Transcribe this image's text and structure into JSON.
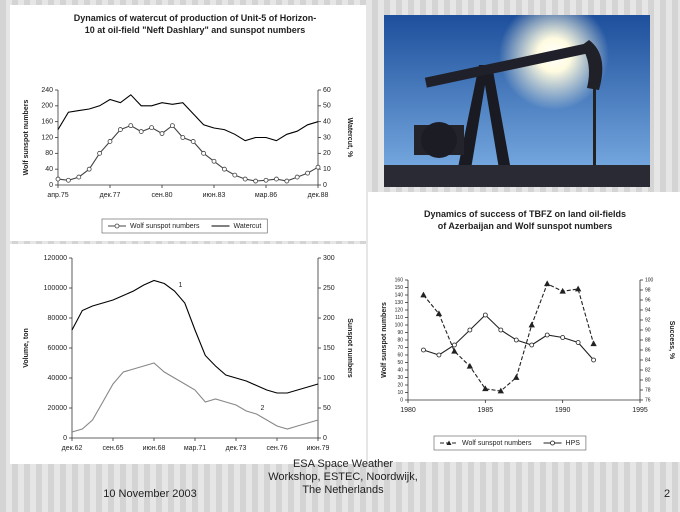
{
  "chart_data": [
    {
      "type": "line",
      "title": "Dynamics of watercut of production of Unit-5 of Horizon-10 at oil-field \"Neft Dashlary\" and sunspot numbers",
      "ylabel": "Wolf sunspot numbers",
      "y2label": "Watercut, %",
      "categories": [
        "апр.75",
        null,
        null,
        null,
        null,
        "дек.77",
        null,
        null,
        null,
        null,
        "сен.80",
        null,
        null,
        null,
        null,
        "июн.83",
        null,
        null,
        null,
        null,
        "мар.86",
        null,
        null,
        null,
        null,
        "дек.88"
      ],
      "series": [
        {
          "name": "Wolf sunspot numbers",
          "color": "#444444",
          "marker": "circle",
          "values": [
            15,
            12,
            20,
            40,
            80,
            110,
            140,
            150,
            135,
            145,
            130,
            150,
            120,
            110,
            80,
            60,
            40,
            25,
            15,
            10,
            12,
            15,
            10,
            20,
            30,
            45
          ]
        },
        {
          "name": "Watercut",
          "color": "#000000",
          "axis": "y2",
          "values": [
            35,
            46,
            47,
            48,
            50,
            54,
            52,
            57,
            50,
            50,
            52,
            51,
            52,
            45,
            38,
            36,
            35,
            32,
            28,
            30,
            30,
            28,
            32,
            34,
            38,
            40
          ]
        }
      ],
      "ylim": [
        0,
        240
      ],
      "yticks": [
        0,
        40,
        80,
        120,
        160,
        200,
        240
      ],
      "y2lim": [
        0,
        60
      ],
      "y2ticks": [
        0,
        10,
        20,
        30,
        40,
        50,
        60
      ],
      "legend": "bottom"
    },
    {
      "type": "line",
      "ylabel": "Volume, ton",
      "y2label": "Sunspot numbers",
      "categories": [
        "дек.62",
        null,
        null,
        null,
        "сен.65",
        null,
        null,
        null,
        "июн.68",
        null,
        null,
        null,
        "мар.71",
        null,
        null,
        null,
        "дек.73",
        null,
        null,
        null,
        "сен.76",
        null,
        null,
        null,
        "июн.79"
      ],
      "series": [
        {
          "name": "1",
          "color": "#000000",
          "values": [
            72000,
            85000,
            88000,
            90000,
            92000,
            95000,
            98000,
            102000,
            105000,
            103000,
            98000,
            90000,
            72000,
            55000,
            48000,
            42000,
            40000,
            38000,
            35000,
            32000,
            30000,
            30000,
            32000,
            34000,
            36000
          ]
        },
        {
          "name": "2",
          "color": "#888888",
          "axis": "y2",
          "values": [
            10,
            15,
            30,
            60,
            90,
            110,
            115,
            120,
            125,
            110,
            100,
            90,
            80,
            60,
            65,
            60,
            55,
            45,
            40,
            30,
            20,
            15,
            20,
            25,
            30
          ]
        }
      ],
      "ylim": [
        0,
        120000
      ],
      "yticks": [
        0,
        20000,
        40000,
        60000,
        80000,
        100000,
        120000
      ],
      "y2lim": [
        0,
        300
      ],
      "y2ticks": [
        0,
        50,
        100,
        150,
        200,
        250,
        300
      ]
    },
    {
      "type": "line",
      "title": "Dynamics of success of TBFZ on land oil-fields of Azerbaijan and Wolf sunspot numbers",
      "ylabel": "Wolf sunspot numbers",
      "y2label": "Success, %",
      "x": [
        1981,
        1982,
        1983,
        1984,
        1985,
        1986,
        1987,
        1988,
        1989,
        1990,
        1991,
        1992
      ],
      "xlim": [
        1980,
        1995
      ],
      "xticks": [
        1980,
        1985,
        1990,
        1995
      ],
      "series": [
        {
          "name": "Wolf sunspot numbers",
          "color": "#222222",
          "marker": "triangle",
          "dash": true,
          "values": [
            140,
            115,
            65,
            45,
            15,
            12,
            30,
            100,
            155,
            145,
            148,
            75
          ]
        },
        {
          "name": "HPS",
          "color": "#222222",
          "marker": "circle",
          "axis": "y2",
          "values": [
            86,
            85,
            87,
            90,
            93,
            90,
            88,
            87,
            89,
            88.5,
            87.5,
            84
          ]
        }
      ],
      "ylim": [
        0,
        160
      ],
      "yticks": [
        0,
        10,
        20,
        30,
        40,
        50,
        60,
        70,
        80,
        90,
        100,
        110,
        120,
        130,
        140,
        150,
        160
      ],
      "y2lim": [
        76,
        100
      ],
      "y2ticks": [
        76,
        78,
        80,
        82,
        84,
        86,
        88,
        90,
        92,
        94,
        96,
        98,
        100
      ],
      "legend": "bottom"
    }
  ],
  "footer": {
    "event": "ESA Space Weather Workshop, ESTEC, Noordwijk, The Netherlands",
    "date": "10 November 2003",
    "page": "2"
  }
}
